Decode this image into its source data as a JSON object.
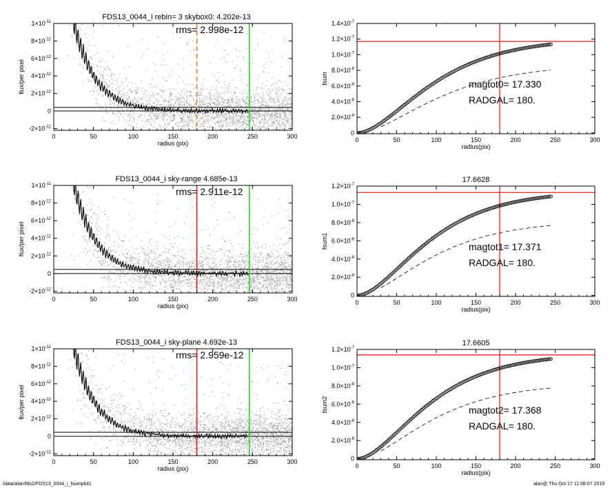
{
  "footer": {
    "left": "/data/alan/fds2/FDS13_0044_i_fsumplot1",
    "right": "alan@  Thu Oct 17 11:08:07 2019"
  },
  "colors": {
    "scatter": "#a8a8a8",
    "profile": "#000000",
    "sky_box": "#e87f1f",
    "sky_red": "#e0201c",
    "outer_radius": "#2bd12b",
    "fsum_ref": "#e0201c"
  },
  "chart_data": [
    {
      "type": "scatter",
      "title": "FDS13_0044_i rebin= 3    skybox0:  4.202e-13",
      "rms_label": "rms= 2.998e-12",
      "xlabel": "radius (pix)",
      "ylabel": "flux/per pixel",
      "xlim": [
        0,
        300
      ],
      "ylim": [
        -2.2e-12,
        1e-11
      ],
      "xticks": [
        "0",
        "50",
        "100",
        "150",
        "200",
        "250",
        "300"
      ],
      "yticks": [
        {
          "v": 1e-11,
          "m": "1×10",
          "e": "-11"
        },
        {
          "v": 8e-12,
          "m": "8×10",
          "e": "-12"
        },
        {
          "v": 6e-12,
          "m": "6×10",
          "e": "-12"
        },
        {
          "v": 4e-12,
          "m": "4×10",
          "e": "-12"
        },
        {
          "v": 2e-12,
          "m": "2×10",
          "e": "-12"
        },
        {
          "v": 0,
          "m": "0",
          "e": ""
        },
        {
          "v": -2e-12,
          "m": "-2×10",
          "e": "-12"
        }
      ],
      "sky_level": 4.202e-13,
      "vlines": [
        {
          "x": 180,
          "color": "#e87f1f",
          "style": "dashed"
        },
        {
          "x": 246,
          "color": "#2bd12b",
          "style": "solid"
        }
      ],
      "profile": {
        "a": 2.6e-11,
        "scale": 27,
        "start": 22,
        "end": 245
      }
    },
    {
      "type": "line",
      "title": "",
      "xlabel": "radius(pix)",
      "ylabel": "fsum",
      "xlim": [
        0,
        300
      ],
      "ylim": [
        -1e-09,
        1.4e-07
      ],
      "xticks": [
        "0",
        "50",
        "100",
        "150",
        "200",
        "250",
        "300"
      ],
      "yticks": [
        {
          "v": 1.4e-07,
          "m": "1.4×10",
          "e": "-7"
        },
        {
          "v": 1.2e-07,
          "m": "1.2×10",
          "e": "-7"
        },
        {
          "v": 1e-07,
          "m": "1.0×10",
          "e": "-7"
        },
        {
          "v": 8e-08,
          "m": "8.0×10",
          "e": "-8"
        },
        {
          "v": 6e-08,
          "m": "6.0×10",
          "e": "-8"
        },
        {
          "v": 4e-08,
          "m": "4.0×10",
          "e": "-8"
        },
        {
          "v": 2e-08,
          "m": "2.0×10",
          "e": "-8"
        },
        {
          "v": 0,
          "m": "0",
          "e": ""
        }
      ],
      "ann1": "magtot0=  17.330",
      "ann2": "RADGAL=    180.",
      "hline": 1.17e-07,
      "vline": 180,
      "curve": {
        "total": 1.21e-07,
        "scale": 55,
        "end": 245
      },
      "dashed": {
        "total": 8.8e-08,
        "scale": 60,
        "end": 245
      }
    },
    {
      "type": "scatter",
      "title": "FDS13_0044_i sky-range  4.685e-13",
      "rms_label": "rms= 2.911e-12",
      "xlabel": "radius (pix)",
      "ylabel": "flux/per pixel",
      "xlim": [
        0,
        300
      ],
      "ylim": [
        -2.2e-12,
        1e-11
      ],
      "xticks": [
        "0",
        "50",
        "100",
        "150",
        "200",
        "250",
        "300"
      ],
      "yticks": [
        {
          "v": 1e-11,
          "m": "1×10",
          "e": "-11"
        },
        {
          "v": 8e-12,
          "m": "8×10",
          "e": "-12"
        },
        {
          "v": 6e-12,
          "m": "6×10",
          "e": "-12"
        },
        {
          "v": 4e-12,
          "m": "4×10",
          "e": "-12"
        },
        {
          "v": 2e-12,
          "m": "2×10",
          "e": "-12"
        },
        {
          "v": 0,
          "m": "0",
          "e": ""
        },
        {
          "v": -2e-12,
          "m": "-2×10",
          "e": "-12"
        }
      ],
      "sky_level": 4.685e-13,
      "vlines": [
        {
          "x": 180,
          "color": "#e0201c",
          "style": "solid"
        },
        {
          "x": 246,
          "color": "#2bd12b",
          "style": "solid"
        }
      ],
      "profile": {
        "a": 2.6e-11,
        "scale": 27,
        "start": 22,
        "end": 245
      }
    },
    {
      "type": "line",
      "title": "17.6628",
      "xlabel": "radius(pix)",
      "ylabel": "fsum1",
      "xlim": [
        0,
        300
      ],
      "ylim": [
        -1e-09,
        1.2e-07
      ],
      "xticks": [
        "0",
        "50",
        "100",
        "150",
        "200",
        "250",
        "300"
      ],
      "yticks": [
        {
          "v": 1.2e-07,
          "m": "1.2×10",
          "e": "-7"
        },
        {
          "v": 1e-07,
          "m": "1.0×10",
          "e": "-7"
        },
        {
          "v": 8e-08,
          "m": "8.0×10",
          "e": "-8"
        },
        {
          "v": 6e-08,
          "m": "6.0×10",
          "e": "-8"
        },
        {
          "v": 4e-08,
          "m": "4.0×10",
          "e": "-8"
        },
        {
          "v": 2e-08,
          "m": "2.0×10",
          "e": "-8"
        },
        {
          "v": 0,
          "m": "0",
          "e": ""
        }
      ],
      "ann1": "magtot1=  17.371",
      "ann2": "RADGAL=    180.",
      "hline": 1.13e-07,
      "vline": 180,
      "curve": {
        "total": 1.145e-07,
        "scale": 52,
        "end": 245
      },
      "dashed": {
        "total": 8.2e-08,
        "scale": 55,
        "end": 245
      }
    },
    {
      "type": "scatter",
      "title": "FDS13_0044_i sky-plane  4.692e-13",
      "rms_label": "rms= 2.959e-12",
      "xlabel": "radius (pix)",
      "ylabel": "flux/per pixel",
      "xlim": [
        0,
        300
      ],
      "ylim": [
        -2.2e-12,
        1e-11
      ],
      "xticks": [
        "0",
        "50",
        "100",
        "150",
        "200",
        "250",
        "300"
      ],
      "yticks": [
        {
          "v": 1e-11,
          "m": "1×10",
          "e": "-11"
        },
        {
          "v": 8e-12,
          "m": "8×10",
          "e": "-12"
        },
        {
          "v": 6e-12,
          "m": "6×10",
          "e": "-12"
        },
        {
          "v": 4e-12,
          "m": "4×10",
          "e": "-12"
        },
        {
          "v": 2e-12,
          "m": "2×10",
          "e": "-12"
        },
        {
          "v": 0,
          "m": "0",
          "e": ""
        },
        {
          "v": -2e-12,
          "m": "-2×10",
          "e": "-12"
        }
      ],
      "sky_level": 4.692e-13,
      "vlines": [
        {
          "x": 180,
          "color": "#e0201c",
          "style": "solid"
        },
        {
          "x": 246,
          "color": "#2bd12b",
          "style": "solid"
        }
      ],
      "profile": {
        "a": 2.6e-11,
        "scale": 27,
        "start": 22,
        "end": 245
      }
    },
    {
      "type": "line",
      "title": "17.6605",
      "xlabel": "radius(pix)",
      "ylabel": "fsum2",
      "xlim": [
        0,
        300
      ],
      "ylim": [
        -1e-09,
        1.2e-07
      ],
      "xticks": [
        "0",
        "50",
        "100",
        "150",
        "200",
        "250",
        "300"
      ],
      "yticks": [
        {
          "v": 1.2e-07,
          "m": "1.2×10",
          "e": "-7"
        },
        {
          "v": 1e-07,
          "m": "1.0×10",
          "e": "-7"
        },
        {
          "v": 8e-08,
          "m": "8.0×10",
          "e": "-8"
        },
        {
          "v": 6e-08,
          "m": "6.0×10",
          "e": "-8"
        },
        {
          "v": 4e-08,
          "m": "4.0×10",
          "e": "-8"
        },
        {
          "v": 2e-08,
          "m": "2.0×10",
          "e": "-8"
        },
        {
          "v": 0,
          "m": "0",
          "e": ""
        }
      ],
      "ann1": "magtot2=  17.368",
      "ann2": "RADGAL=    180.",
      "hline": 1.14e-07,
      "vline": 180,
      "curve": {
        "total": 1.155e-07,
        "scale": 52,
        "end": 245
      },
      "dashed": {
        "total": 8.3e-08,
        "scale": 55,
        "end": 245
      }
    }
  ]
}
